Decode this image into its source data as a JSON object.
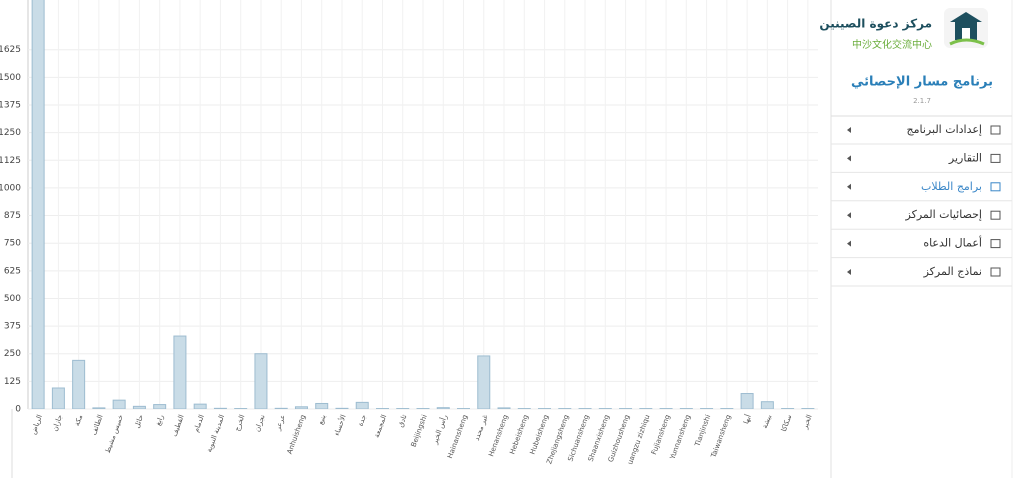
{
  "chart_data": {
    "type": "bar",
    "categories": [
      "الرياض",
      "جازان",
      "مكة",
      "الطائف",
      "خميس مشيط",
      "حائل",
      "رابغ",
      "القطيف",
      "الدمام",
      "المدينة النبوية",
      "الخرج",
      "نجران",
      "عرعر",
      "Anhuisheng",
      "ينبع",
      "الأحساء",
      "جدة",
      "المجمعة",
      "ثادق",
      "Beijingshi",
      "رأس الخير",
      "Hainansheng",
      "غير محدد",
      "Henansheng",
      "Hebeisheng",
      "Hubeisheng",
      "Zhejiangsheng",
      "Sichuansheng",
      "Shaanxisheng",
      "Guizhousheng",
      "uangzu zizhiqu",
      "Fujiansheng",
      "Yunnansheng",
      "Tianjinshi",
      "Taiwansheng",
      "أبها",
      "بيشة",
      "سكاكا",
      "الخبر"
    ],
    "values": [
      1900,
      95,
      220,
      5,
      40,
      12,
      20,
      330,
      22,
      3,
      2,
      250,
      3,
      10,
      25,
      3,
      30,
      2,
      2,
      2,
      6,
      2,
      240,
      5,
      2,
      2,
      2,
      2,
      2,
      2,
      2,
      2,
      2,
      2,
      2,
      70,
      33,
      2,
      2
    ],
    "color": "#c9dce7",
    "stroke": "#9dbcd0",
    "ylim": [
      0,
      1850
    ],
    "yticks": [
      0,
      125,
      250,
      375,
      500,
      625,
      750,
      875,
      1000,
      1125,
      1250,
      1375,
      1500,
      1625
    ],
    "grid": true
  },
  "sidebar": {
    "org_name": "مركز دعوة الصينين",
    "org_name_cn": "中沙文化交流中心",
    "app_name": "برنامج مسار الإحصائي",
    "version": "2.1.7",
    "menu": [
      "إعدادات البرنامج",
      "التقارير",
      "برامج الطلاب",
      "إحصائيات المركز",
      "أعمال الدعاه",
      "نماذج المركز"
    ],
    "active": 2
  }
}
